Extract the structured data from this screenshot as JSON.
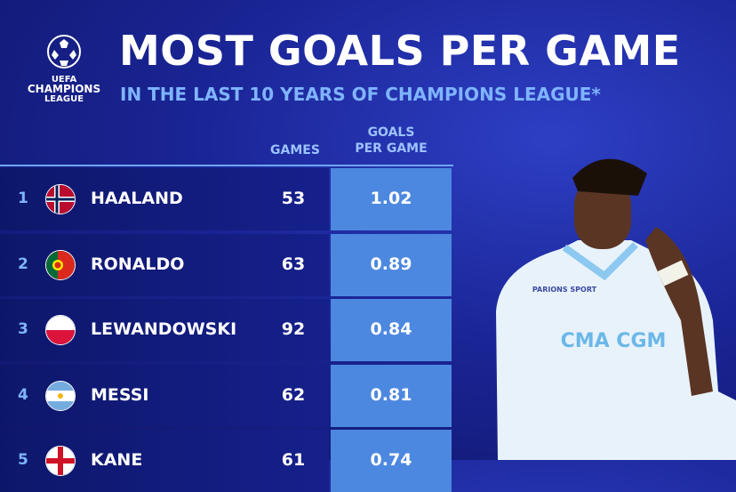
{
  "logo": {
    "lines": [
      "UEFA",
      "CHAMPIONS",
      "LEAGUE"
    ]
  },
  "header": {
    "title": "MOST GOALS PER GAME",
    "subtitle": "IN THE LAST 10 YEARS OF CHAMPIONS LEAGUE*"
  },
  "table": {
    "columns": [
      "GAMES",
      [
        "GOALS",
        "PER GAME"
      ]
    ],
    "rows": [
      [
        "1",
        "HAALAND",
        "53",
        "1.02"
      ],
      [
        "2",
        "RONALDO",
        "63",
        "0.89"
      ],
      [
        "3",
        "LEWANDOWSKI",
        "92",
        "0.84"
      ],
      [
        "4",
        "MESSI",
        "62",
        "0.81"
      ],
      [
        "5",
        "KANE",
        "61",
        "0.74"
      ]
    ]
  },
  "photo": {
    "sponsor": "PARIONS SPORT",
    "shirt": "CMA CGM"
  }
}
